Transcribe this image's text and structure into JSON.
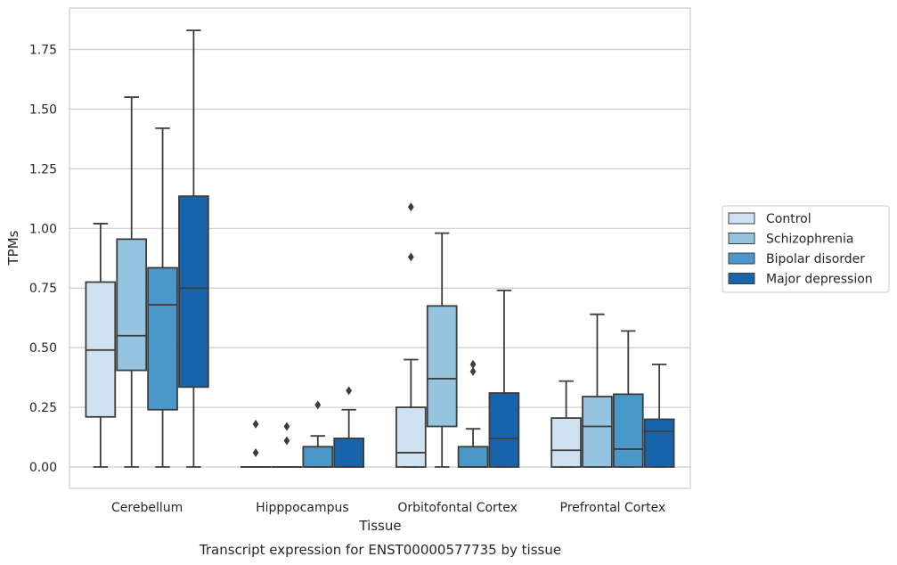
{
  "chart_data": {
    "type": "boxplot",
    "caption": "Transcript expression for ENST00000577735 by tissue",
    "xlabel": "Tissue",
    "ylabel": "TPMs",
    "ylim": [
      -0.09,
      1.94
    ],
    "yticks": [
      0.0,
      0.25,
      0.5,
      0.75,
      1.0,
      1.25,
      1.5,
      1.75
    ],
    "ytick_labels": [
      "0.00",
      "0.25",
      "0.50",
      "0.75",
      "1.00",
      "1.25",
      "1.50",
      "1.75"
    ],
    "grid": true,
    "legend_position": "right",
    "categories": [
      "Cerebellum",
      "Hipppocampus",
      "Orbitofontal Cortex",
      "Prefrontal Cortex"
    ],
    "series": [
      {
        "name": "Control",
        "color": "#d0e1f2",
        "boxes": [
          {
            "whisker_low": 0.0,
            "q1": 0.21,
            "median": 0.49,
            "q3": 0.775,
            "whisker_high": 1.02,
            "outliers": []
          },
          {
            "whisker_low": 0.0,
            "q1": 0.0,
            "median": 0.0,
            "q3": 0.0,
            "whisker_high": 0.0,
            "outliers": [
              0.06,
              0.18
            ]
          },
          {
            "whisker_low": 0.0,
            "q1": 0.0,
            "median": 0.06,
            "q3": 0.25,
            "whisker_high": 0.45,
            "outliers": [
              0.88,
              1.09
            ]
          },
          {
            "whisker_low": 0.0,
            "q1": 0.0,
            "median": 0.07,
            "q3": 0.205,
            "whisker_high": 0.36,
            "outliers": []
          }
        ]
      },
      {
        "name": "Schizophrenia",
        "color": "#94c4df",
        "boxes": [
          {
            "whisker_low": 0.0,
            "q1": 0.405,
            "median": 0.55,
            "q3": 0.955,
            "whisker_high": 1.55,
            "outliers": []
          },
          {
            "whisker_low": 0.0,
            "q1": 0.0,
            "median": 0.0,
            "q3": 0.0,
            "whisker_high": 0.0,
            "outliers": [
              0.11,
              0.17
            ]
          },
          {
            "whisker_low": 0.0,
            "q1": 0.17,
            "median": 0.37,
            "q3": 0.675,
            "whisker_high": 0.98,
            "outliers": []
          },
          {
            "whisker_low": 0.0,
            "q1": 0.0,
            "median": 0.17,
            "q3": 0.295,
            "whisker_high": 0.64,
            "outliers": []
          }
        ]
      },
      {
        "name": "Bipolar disorder",
        "color": "#4a98c9",
        "boxes": [
          {
            "whisker_low": 0.0,
            "q1": 0.24,
            "median": 0.68,
            "q3": 0.835,
            "whisker_high": 1.42,
            "outliers": []
          },
          {
            "whisker_low": 0.0,
            "q1": 0.0,
            "median": 0.0,
            "q3": 0.085,
            "whisker_high": 0.13,
            "outliers": [
              0.26
            ]
          },
          {
            "whisker_low": 0.0,
            "q1": 0.0,
            "median": 0.0,
            "q3": 0.085,
            "whisker_high": 0.16,
            "outliers": [
              0.4,
              0.43
            ]
          },
          {
            "whisker_low": 0.0,
            "q1": 0.0,
            "median": 0.075,
            "q3": 0.305,
            "whisker_high": 0.57,
            "outliers": []
          }
        ]
      },
      {
        "name": "Major depression",
        "color": "#1764ab",
        "boxes": [
          {
            "whisker_low": 0.0,
            "q1": 0.335,
            "median": 0.75,
            "q3": 1.135,
            "whisker_high": 1.83,
            "outliers": []
          },
          {
            "whisker_low": 0.0,
            "q1": 0.0,
            "median": 0.0,
            "q3": 0.12,
            "whisker_high": 0.24,
            "outliers": [
              0.32
            ]
          },
          {
            "whisker_low": 0.0,
            "q1": 0.0,
            "median": 0.12,
            "q3": 0.31,
            "whisker_high": 0.74,
            "outliers": []
          },
          {
            "whisker_low": 0.0,
            "q1": 0.0,
            "median": 0.15,
            "q3": 0.2,
            "whisker_high": 0.43,
            "outliers": []
          }
        ]
      }
    ]
  }
}
